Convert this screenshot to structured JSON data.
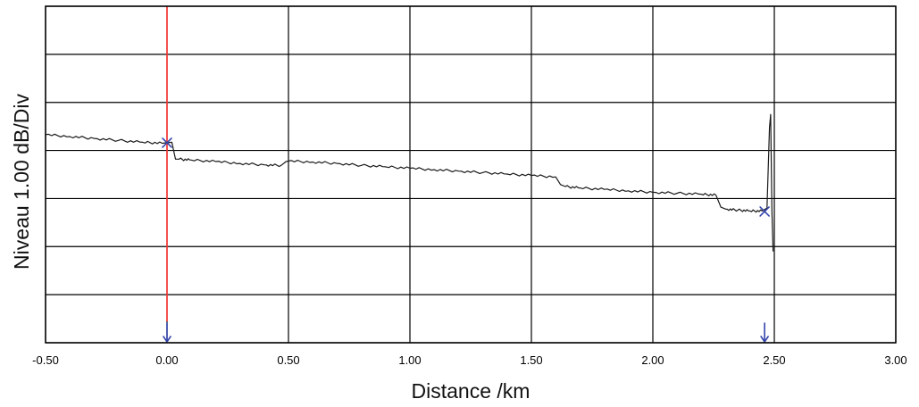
{
  "chart_data": {
    "type": "line",
    "title": "",
    "xlabel": "Distance /km",
    "ylabel": "Niveau 1.00 dB/Div",
    "xlim": [
      -0.5,
      3.0
    ],
    "ylim": [
      0,
      7
    ],
    "y_units_note": "vertical scale 1.00 dB per division",
    "grid": true,
    "x_ticks": [
      "-0.50",
      "0.00",
      "0.50",
      "1.00",
      "1.50",
      "2.00",
      "2.50",
      "3.00"
    ],
    "x_tick_values": [
      -0.5,
      0.0,
      0.5,
      1.0,
      1.5,
      2.0,
      2.5,
      3.0
    ],
    "y_tick_values": [
      0,
      1,
      2,
      3,
      4,
      5,
      6,
      7
    ],
    "series": [
      {
        "color": "#1a1a1a",
        "x": [
          -0.5,
          -0.4,
          -0.3,
          -0.2,
          -0.1,
          -0.02,
          0.02,
          0.035,
          0.05,
          0.1,
          0.2,
          0.3,
          0.4,
          0.47,
          0.49,
          0.5,
          0.6,
          0.7,
          0.8,
          0.9,
          1.0,
          1.1,
          1.2,
          1.3,
          1.4,
          1.5,
          1.6,
          1.62,
          1.64,
          1.7,
          1.8,
          1.9,
          2.0,
          2.1,
          2.2,
          2.26,
          2.28,
          2.3,
          2.35,
          2.4,
          2.45,
          2.47,
          2.48,
          2.485,
          2.49,
          2.495
        ],
        "y": [
          4.33,
          4.29,
          4.25,
          4.21,
          4.17,
          4.15,
          4.17,
          3.82,
          3.82,
          3.8,
          3.77,
          3.73,
          3.7,
          3.69,
          3.77,
          3.78,
          3.76,
          3.73,
          3.69,
          3.66,
          3.63,
          3.6,
          3.57,
          3.54,
          3.51,
          3.48,
          3.45,
          3.29,
          3.25,
          3.22,
          3.19,
          3.16,
          3.13,
          3.11,
          3.09,
          3.07,
          2.82,
          2.78,
          2.76,
          2.74,
          2.74,
          2.8,
          4.48,
          4.75,
          2.75,
          1.9
        ]
      }
    ],
    "events": [
      {
        "x": 0.0,
        "y": 4.16,
        "marker": "x",
        "color": "#3344aa"
      },
      {
        "x": 2.46,
        "y": 2.73,
        "marker": "x",
        "color": "#3344aa"
      }
    ],
    "cursors": [
      {
        "x": 0.0,
        "line_color": "#ff3333",
        "arrow_color": "#3344aa"
      },
      {
        "x": 2.46,
        "arrow_color": "#3344aa"
      }
    ]
  }
}
